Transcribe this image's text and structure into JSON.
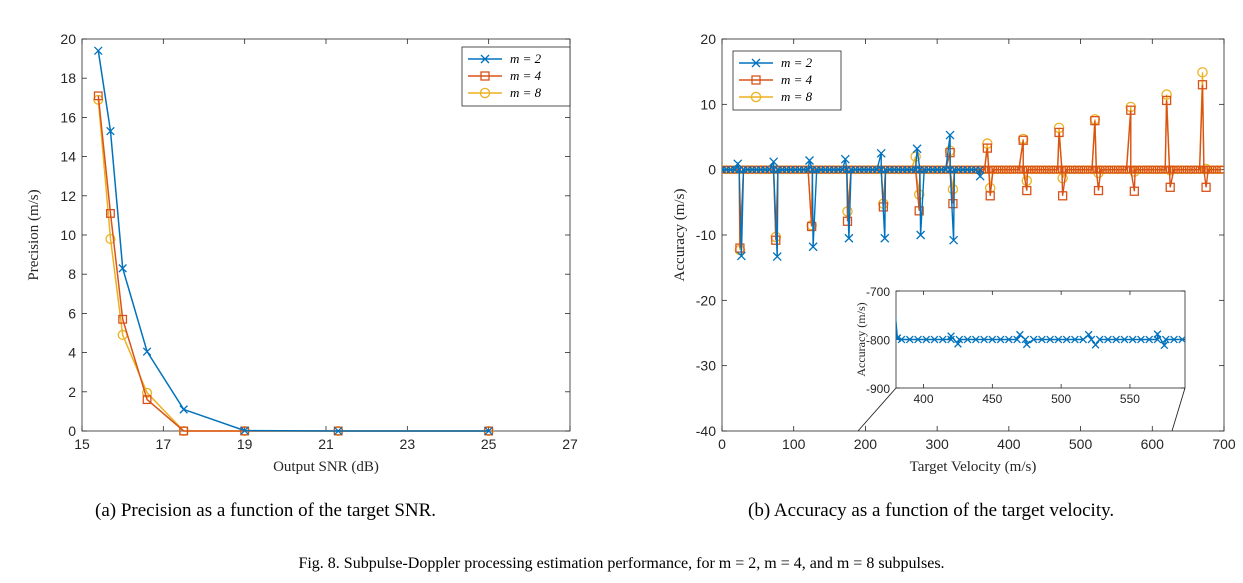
{
  "colors": {
    "m2": "#0072BD",
    "m4": "#D95319",
    "m8": "#EDB120"
  },
  "chart_data": [
    {
      "type": "line",
      "xlabel": "Output SNR (dB)",
      "ylabel": "Precision (m/s)",
      "xlim": [
        15,
        27
      ],
      "ylim": [
        0,
        20
      ],
      "xticks": [
        "15",
        "17",
        "19",
        "21",
        "23",
        "25",
        "27"
      ],
      "yticks": [
        "0",
        "2",
        "4",
        "6",
        "8",
        "10",
        "12",
        "14",
        "16",
        "18",
        "20"
      ],
      "legend": "top-right",
      "grid": false,
      "series": [
        {
          "name": "m = 2",
          "marker": "x",
          "x": [
            15.4,
            15.7,
            16.0,
            16.6,
            17.5,
            19.0,
            21.3,
            25.0
          ],
          "y": [
            19.4,
            15.3,
            8.3,
            4.05,
            1.1,
            0.02,
            0.0,
            0.0
          ]
        },
        {
          "name": "m = 4",
          "marker": "square",
          "x": [
            15.4,
            15.7,
            16.0,
            16.6,
            17.5,
            19.0,
            21.3,
            25.0
          ],
          "y": [
            17.1,
            11.1,
            5.7,
            1.6,
            0.0,
            0.0,
            0.0,
            0.0
          ]
        },
        {
          "name": "m = 8",
          "marker": "circle",
          "x": [
            15.4,
            15.7,
            16.0,
            16.6,
            17.5,
            19.0,
            21.3,
            25.0
          ],
          "y": [
            16.9,
            9.8,
            4.9,
            1.95,
            0.0,
            0.0,
            0.0,
            0.0
          ]
        }
      ]
    },
    {
      "type": "line",
      "xlabel": "Target Velocity (m/s)",
      "ylabel": "Accuracy (m/s)",
      "xlim": [
        0,
        700
      ],
      "ylim": [
        -40,
        20
      ],
      "xticks": [
        "0",
        "100",
        "200",
        "300",
        "400",
        "500",
        "600",
        "700"
      ],
      "yticks": [
        "-40",
        "-30",
        "-20",
        "-10",
        "0",
        "10",
        "20"
      ],
      "legend": "top-left",
      "grid": false,
      "series": [
        {
          "name": "m = 2",
          "marker": "x",
          "spikes": [
            [
              22,
              0.9
            ],
            [
              27,
              -13.2
            ],
            [
              72,
              1.2
            ],
            [
              77,
              -13.3
            ],
            [
              122,
              1.4
            ],
            [
              127,
              -11.8
            ],
            [
              172,
              1.6
            ],
            [
              177,
              -10.5
            ],
            [
              222,
              2.5
            ],
            [
              227,
              -10.5
            ],
            [
              272,
              3.2
            ],
            [
              277,
              -10.0
            ],
            [
              318,
              5.3
            ],
            [
              323,
              -10.8
            ],
            [
              360,
              -1.0
            ],
            [
              368,
              -700
            ]
          ]
        },
        {
          "name": "m = 4",
          "marker": "square",
          "spikes": [
            [
              25,
              -12.0
            ],
            [
              75,
              -10.8
            ],
            [
              125,
              -8.7
            ],
            [
              175,
              -7.9
            ],
            [
              225,
              -5.7
            ],
            [
              275,
              -6.3
            ],
            [
              318,
              2.6
            ],
            [
              322,
              -5.2
            ],
            [
              370,
              3.3
            ],
            [
              374,
              -4.0
            ],
            [
              420,
              4.5
            ],
            [
              425,
              -3.2
            ],
            [
              470,
              5.7
            ],
            [
              475,
              -4.0
            ],
            [
              520,
              7.5
            ],
            [
              525,
              -3.2
            ],
            [
              570,
              9.1
            ],
            [
              575,
              -3.3
            ],
            [
              620,
              10.6
            ],
            [
              625,
              -2.7
            ],
            [
              670,
              13.0
            ],
            [
              675,
              -2.7
            ]
          ]
        },
        {
          "name": "m = 8",
          "marker": "circle",
          "spikes": [
            [
              25,
              -12.3
            ],
            [
              75,
              -10.3
            ],
            [
              125,
              -8.5
            ],
            [
              175,
              -6.4
            ],
            [
              225,
              -5.2
            ],
            [
              270,
              2.0
            ],
            [
              275,
              -3.8
            ],
            [
              318,
              2.9
            ],
            [
              322,
              -3.0
            ],
            [
              370,
              4.0
            ],
            [
              374,
              -2.8
            ],
            [
              420,
              4.7
            ],
            [
              425,
              -1.7
            ],
            [
              470,
              6.4
            ],
            [
              475,
              -1.3
            ],
            [
              520,
              7.7
            ],
            [
              525,
              -0.5
            ],
            [
              570,
              9.6
            ],
            [
              575,
              -0.3
            ],
            [
              620,
              11.5
            ],
            [
              625,
              -0.1
            ],
            [
              670,
              14.9
            ],
            [
              675,
              0.1
            ]
          ]
        }
      ],
      "inset": {
        "ylabel": "Accuracy (m/s)",
        "xlim": [
          380,
          590
        ],
        "ylim": [
          -900,
          -700
        ],
        "xticks": [
          "400",
          "450",
          "500",
          "550"
        ],
        "yticks": [
          "-900",
          "-800",
          "-700"
        ],
        "series": {
          "name": "m = 2",
          "marker": "x",
          "entry": [
            [
              378,
              -700
            ],
            [
              381,
              -797
            ]
          ],
          "base": -800,
          "step": 6,
          "spikes": [
            [
              420,
              -793
            ],
            [
              425,
              -809
            ],
            [
              470,
              -790
            ],
            [
              475,
              -810
            ],
            [
              520,
              -790
            ],
            [
              525,
              -811
            ],
            [
              570,
              -789
            ],
            [
              575,
              -812
            ]
          ]
        }
      }
    }
  ],
  "captions": {
    "a": "(a) Precision as a function of the target SNR.",
    "b": "(b) Accuracy as a function of the target velocity.",
    "fig": "Fig. 8.    Subpulse-Doppler processing estimation performance, for m = 2, m = 4, and m = 8 subpulses."
  }
}
